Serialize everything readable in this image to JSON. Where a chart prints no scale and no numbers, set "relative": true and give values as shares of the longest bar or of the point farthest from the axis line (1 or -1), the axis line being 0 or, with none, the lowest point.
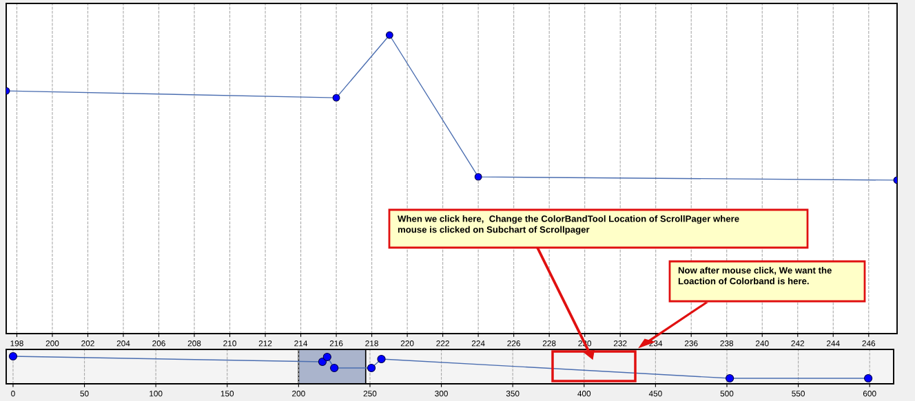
{
  "chart_data": [
    {
      "type": "line",
      "relative": true,
      "x": [
        197.4,
        216,
        219,
        224,
        247.6
      ],
      "series": [
        {
          "color": "#4a6db0",
          "values": [
            0.813,
            0.79,
            1,
            0.525,
            0.514
          ]
        }
      ],
      "xlim": [
        197.4,
        247.6
      ],
      "xticks": [
        198,
        200,
        202,
        204,
        206,
        208,
        210,
        212,
        214,
        216,
        218,
        220,
        222,
        224,
        226,
        228,
        230,
        232,
        234,
        236,
        238,
        240,
        242,
        244,
        246
      ],
      "marker": "circle",
      "grid": "x",
      "annotations": [
        "When we click here,  Change the ColorBandTool Location of ScrollPager where\nmouse is clicked on Subchart of Scrollpager",
        "Now after mouse click, We want the\nLoaction of Colorband is here."
      ]
    },
    {
      "type": "line",
      "relative": true,
      "x": [
        0,
        216.7,
        220,
        225,
        251,
        258,
        502,
        599
      ],
      "series": [
        {
          "color": "#4a6db0",
          "values": [
            1,
            0.8,
            0.975,
            0.575,
            0.575,
            0.9,
            0.2,
            0.2
          ]
        }
      ],
      "xlim": [
        -4.8,
        616.8
      ],
      "xticks": [
        0,
        50,
        100,
        150,
        200,
        250,
        300,
        350,
        400,
        450,
        500,
        550,
        600
      ],
      "marker": "circle",
      "grid": "x",
      "bands": [
        {
          "axis": "x",
          "from": 200,
          "to": 247,
          "color": "#aab4cc"
        }
      ]
    }
  ]
}
